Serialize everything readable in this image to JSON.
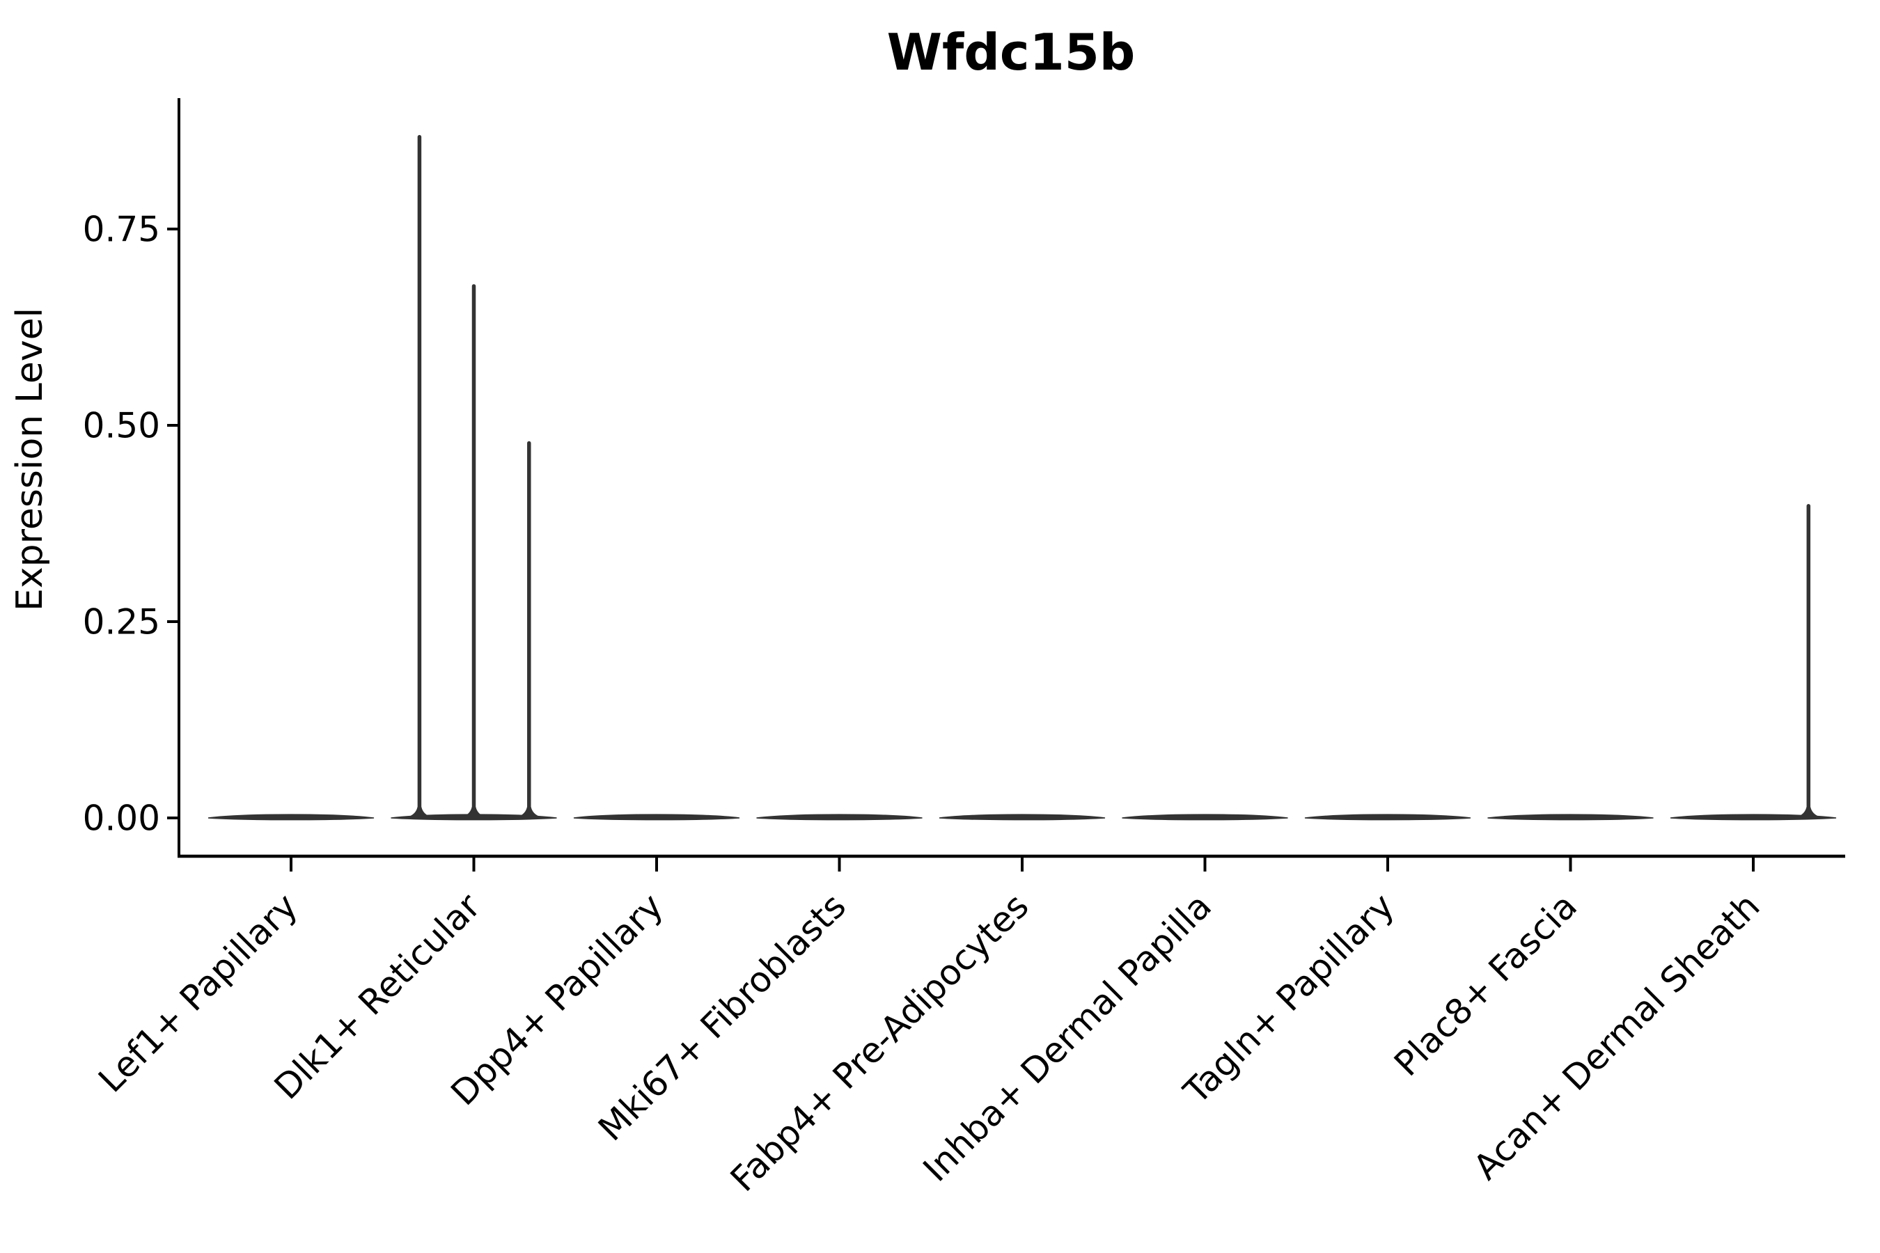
{
  "chart": {
    "title": "Wfdc15b",
    "ylabel": "Expression Level",
    "background_color": "#ffffff",
    "text_color": "#000000",
    "axis_color": "#000000",
    "violin_color": "#333333"
  },
  "chart_data": {
    "type": "violin",
    "title": "Wfdc15b",
    "xlabel": "",
    "ylabel": "Expression Level",
    "grid": false,
    "legend": false,
    "categories": [
      "Lef1+ Papillary",
      "Dlk1+ Reticular",
      "Dpp4+ Papillary",
      "Mki67+ Fibroblasts",
      "Fabp4+ Pre-Adipocytes",
      "Inhba+ Dermal Papilla",
      "Tagln+ Papillary",
      "Plac8+ Fascia",
      "Acan+ Dermal Sheath"
    ],
    "yticks": [
      {
        "value": 0.0,
        "label": "0.00"
      },
      {
        "value": 0.25,
        "label": "0.25"
      },
      {
        "value": 0.5,
        "label": "0.50"
      },
      {
        "value": 0.75,
        "label": "0.75"
      }
    ],
    "ylim": [
      -0.05,
      0.92
    ],
    "violins": [
      {
        "category": "Lef1+ Papillary",
        "base_value": 0,
        "spikes": []
      },
      {
        "category": "Dlk1+ Reticular",
        "base_value": 0,
        "spikes": [
          {
            "offset": -0.64,
            "max": 0.87
          },
          {
            "offset": 0.0,
            "max": 0.68
          },
          {
            "offset": 0.65,
            "max": 0.48
          }
        ]
      },
      {
        "category": "Dpp4+ Papillary",
        "base_value": 0,
        "spikes": []
      },
      {
        "category": "Mki67+ Fibroblasts",
        "base_value": 0,
        "spikes": []
      },
      {
        "category": "Fabp4+ Pre-Adipocytes",
        "base_value": 0,
        "spikes": []
      },
      {
        "category": "Inhba+ Dermal Papilla",
        "base_value": 0,
        "spikes": []
      },
      {
        "category": "Tagln+ Papillary",
        "base_value": 0,
        "spikes": []
      },
      {
        "category": "Plac8+ Fascia",
        "base_value": 0,
        "spikes": []
      },
      {
        "category": "Acan+ Dermal Sheath",
        "base_value": 0,
        "spikes": [
          {
            "offset": 0.65,
            "max": 0.4
          }
        ]
      }
    ]
  }
}
